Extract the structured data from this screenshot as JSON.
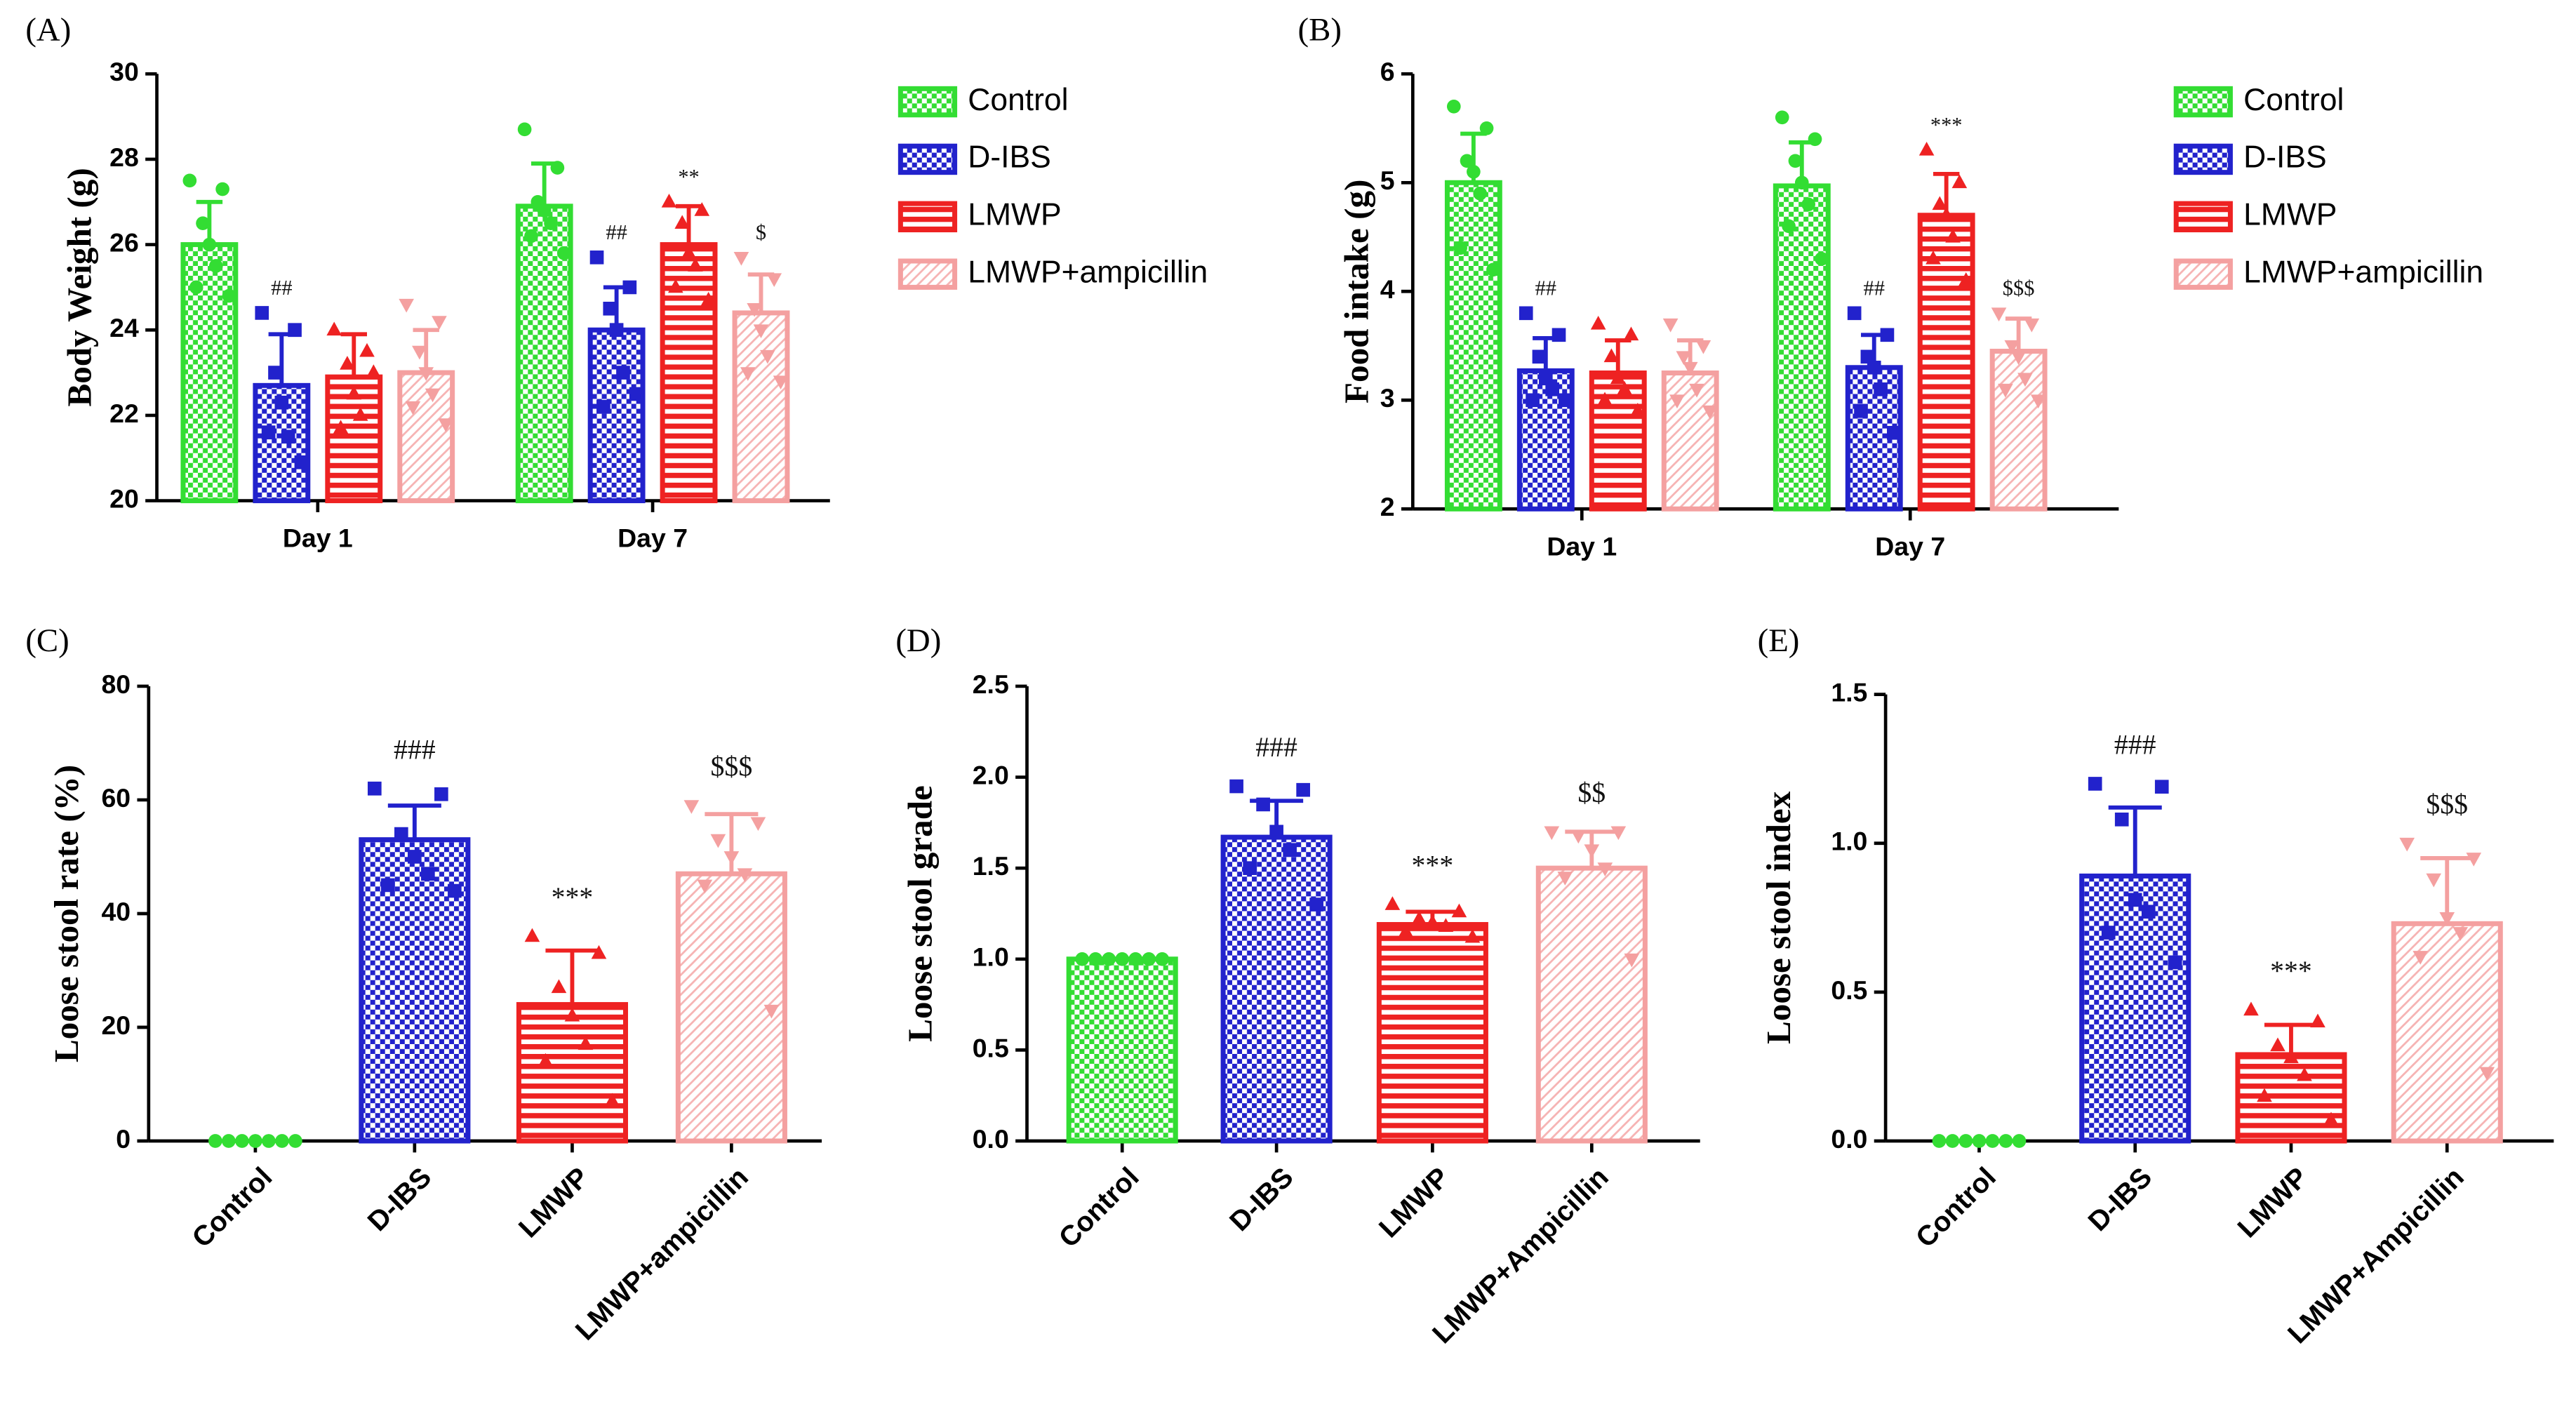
{
  "chart_data": [
    {
      "type": "bar",
      "label": "(A)",
      "ylabel": "Body Weight (g)",
      "categories": [
        "Day 1",
        "Day 7"
      ],
      "ylim": [
        20,
        30
      ],
      "yticks": [
        20,
        22,
        24,
        26,
        28,
        30
      ],
      "series": [
        {
          "name": "Control",
          "color": "#33dd33",
          "pattern": "checker",
          "marker": "circle",
          "values": [
            26.0,
            26.9
          ],
          "errors": [
            1.0,
            1.0
          ],
          "annotations": [
            null,
            null
          ],
          "points": [
            [
              27.5,
              27.3,
              26.5,
              26.0,
              25.5,
              25.0,
              24.8
            ],
            [
              28.7,
              27.8,
              27.0,
              26.8,
              26.5,
              26.2,
              25.8
            ]
          ]
        },
        {
          "name": "D-IBS",
          "color": "#2222cc",
          "pattern": "checker",
          "marker": "square",
          "values": [
            22.7,
            24.0
          ],
          "errors": [
            1.2,
            1.0
          ],
          "annotations": [
            "##",
            "##"
          ],
          "points": [
            [
              24.4,
              24.0,
              23.0,
              22.3,
              21.5,
              21.6,
              20.9
            ],
            [
              25.7,
              25.0,
              24.5,
              24.0,
              23.0,
              22.2,
              22.5
            ]
          ]
        },
        {
          "name": "LMWP",
          "color": "#ee2222",
          "pattern": "hstripe",
          "marker": "triangle",
          "values": [
            22.9,
            26.0
          ],
          "errors": [
            1.0,
            0.9
          ],
          "annotations": [
            null,
            "**"
          ],
          "points": [
            [
              24.0,
              23.5,
              23.2,
              22.5,
              22.0,
              21.7,
              23.0
            ],
            [
              27.0,
              26.8,
              26.5,
              25.8,
              25.5,
              25.0,
              24.7
            ]
          ]
        },
        {
          "name": "LMWP+ampicillin",
          "color": "#f4a0a0",
          "pattern": "diag",
          "marker": "triangle-down",
          "values": [
            23.0,
            24.4
          ],
          "errors": [
            1.0,
            0.9
          ],
          "annotations": [
            null,
            "$"
          ],
          "points": [
            [
              24.6,
              24.2,
              23.5,
              23.0,
              22.5,
              22.2,
              21.8
            ],
            [
              25.7,
              25.2,
              24.5,
              24.0,
              23.4,
              23.0,
              22.8
            ]
          ]
        }
      ]
    },
    {
      "type": "bar",
      "label": "(B)",
      "ylabel": "Food intake (g)",
      "categories": [
        "Day 1",
        "Day 7"
      ],
      "ylim": [
        2,
        6
      ],
      "yticks": [
        2,
        3,
        4,
        5,
        6
      ],
      "series": [
        {
          "name": "Control",
          "color": "#33dd33",
          "pattern": "checker",
          "marker": "circle",
          "values": [
            5.0,
            4.97
          ],
          "errors": [
            0.45,
            0.4
          ],
          "annotations": [
            null,
            null
          ],
          "points": [
            [
              5.7,
              5.5,
              5.2,
              5.1,
              4.9,
              4.4,
              4.2
            ],
            [
              5.6,
              5.4,
              5.2,
              5.0,
              4.8,
              4.6,
              4.3
            ]
          ]
        },
        {
          "name": "D-IBS",
          "color": "#2222cc",
          "pattern": "checker",
          "marker": "square",
          "values": [
            3.27,
            3.3
          ],
          "errors": [
            0.3,
            0.3
          ],
          "annotations": [
            "##",
            "##"
          ],
          "points": [
            [
              3.8,
              3.6,
              3.4,
              3.2,
              3.1,
              3.0,
              3.0
            ],
            [
              3.8,
              3.6,
              3.4,
              3.3,
              3.1,
              2.9,
              2.7
            ]
          ]
        },
        {
          "name": "LMWP",
          "color": "#ee2222",
          "pattern": "hstripe",
          "marker": "triangle",
          "values": [
            3.25,
            4.7
          ],
          "errors": [
            0.3,
            0.38
          ],
          "annotations": [
            null,
            "***"
          ],
          "points": [
            [
              3.7,
              3.6,
              3.4,
              3.2,
              3.1,
              3.0,
              2.9
            ],
            [
              5.3,
              5.0,
              4.8,
              4.7,
              4.5,
              4.3,
              4.1
            ]
          ]
        },
        {
          "name": "LMWP+ampicillin",
          "color": "#f4a0a0",
          "pattern": "diag",
          "marker": "triangle-down",
          "values": [
            3.25,
            3.45
          ],
          "errors": [
            0.3,
            0.3
          ],
          "annotations": [
            null,
            "$$$"
          ],
          "points": [
            [
              3.7,
              3.5,
              3.4,
              3.3,
              3.1,
              3.0,
              2.9
            ],
            [
              3.8,
              3.7,
              3.5,
              3.4,
              3.2,
              3.1,
              3.0
            ]
          ]
        }
      ]
    },
    {
      "type": "bar",
      "label": "(C)",
      "ylabel": "Loose stool rate  (%)",
      "categories": [
        "Control",
        "D-IBS",
        "LMWP",
        "LMWP+ampicillin"
      ],
      "ylim": [
        0,
        80
      ],
      "yticks": [
        0,
        20,
        40,
        60,
        80
      ],
      "values": [
        0,
        53,
        24,
        47
      ],
      "errors": [
        0,
        6,
        9.5,
        10.5
      ],
      "annotations": [
        null,
        "###",
        "***",
        "$$$"
      ],
      "colors": [
        "#33dd33",
        "#2222cc",
        "#ee2222",
        "#f4a0a0"
      ],
      "patterns": [
        "checker",
        "checker",
        "hstripe",
        "diag"
      ],
      "markers": [
        "circle",
        "square",
        "triangle",
        "triangle-down"
      ],
      "points": [
        [
          0,
          0,
          0,
          0,
          0,
          0,
          0
        ],
        [
          62,
          61,
          54,
          50,
          47,
          45,
          44
        ],
        [
          36,
          33,
          27,
          22,
          17,
          14,
          7
        ],
        [
          59,
          56,
          53,
          50,
          47,
          45,
          23
        ]
      ]
    },
    {
      "type": "bar",
      "label": "(D)",
      "ylabel": "Loose stool grade",
      "categories": [
        "Control",
        "D-IBS",
        "LMWP",
        "LMWP+Ampicillin"
      ],
      "ylim": [
        0,
        2.5
      ],
      "yticks": [
        {
          "value": 0,
          "label": "0.0"
        },
        {
          "value": 0.5,
          "label": "0.5"
        },
        {
          "value": 1,
          "label": "1.0"
        },
        {
          "value": 1.5,
          "label": "1.5"
        },
        {
          "value": 2,
          "label": "2.0"
        },
        {
          "value": 2.5,
          "label": "2.5"
        }
      ],
      "values": [
        1.0,
        1.67,
        1.19,
        1.5
      ],
      "errors": [
        0,
        0.2,
        0.07,
        0.2
      ],
      "annotations": [
        null,
        "###",
        "***",
        "$$"
      ],
      "colors": [
        "#33dd33",
        "#2222cc",
        "#ee2222",
        "#f4a0a0"
      ],
      "patterns": [
        "checker",
        "checker",
        "hstripe",
        "diag"
      ],
      "markers": [
        "circle",
        "square",
        "triangle",
        "triangle-down"
      ],
      "points": [
        [
          1,
          1,
          1,
          1,
          1,
          1,
          1
        ],
        [
          1.95,
          1.93,
          1.85,
          1.7,
          1.6,
          1.5,
          1.3
        ],
        [
          1.3,
          1.26,
          1.22,
          1.2,
          1.18,
          1.15,
          1.12
        ],
        [
          1.7,
          1.7,
          1.68,
          1.6,
          1.5,
          1.45,
          1.0
        ]
      ]
    },
    {
      "type": "bar",
      "label": "(E)",
      "ylabel": "Loose stool index",
      "categories": [
        "Control",
        "D-IBS",
        "LMWP",
        "LMWP+Ampicillin"
      ],
      "ylim": [
        0,
        1.5
      ],
      "yticks": [
        {
          "value": 0,
          "label": "0.0"
        },
        {
          "value": 0.5,
          "label": "0.5"
        },
        {
          "value": 1,
          "label": "1.0"
        },
        {
          "value": 1.5,
          "label": "1.5"
        }
      ],
      "values": [
        0,
        0.89,
        0.29,
        0.73
      ],
      "errors": [
        0,
        0.23,
        0.1,
        0.22
      ],
      "annotations": [
        null,
        "###",
        "***",
        "$$$"
      ],
      "colors": [
        "#33dd33",
        "#2222cc",
        "#ee2222",
        "#f4a0a0"
      ],
      "patterns": [
        "checker",
        "checker",
        "hstripe",
        "diag"
      ],
      "markers": [
        "circle",
        "square",
        "triangle",
        "triangle-down"
      ],
      "points": [
        [
          0,
          0,
          0,
          0,
          0,
          0,
          0
        ],
        [
          1.2,
          1.19,
          1.08,
          0.81,
          0.77,
          0.7,
          0.6
        ],
        [
          0.44,
          0.4,
          0.32,
          0.28,
          0.22,
          0.15,
          0.07
        ],
        [
          1.0,
          0.95,
          0.88,
          0.75,
          0.7,
          0.62,
          0.23
        ]
      ]
    }
  ]
}
